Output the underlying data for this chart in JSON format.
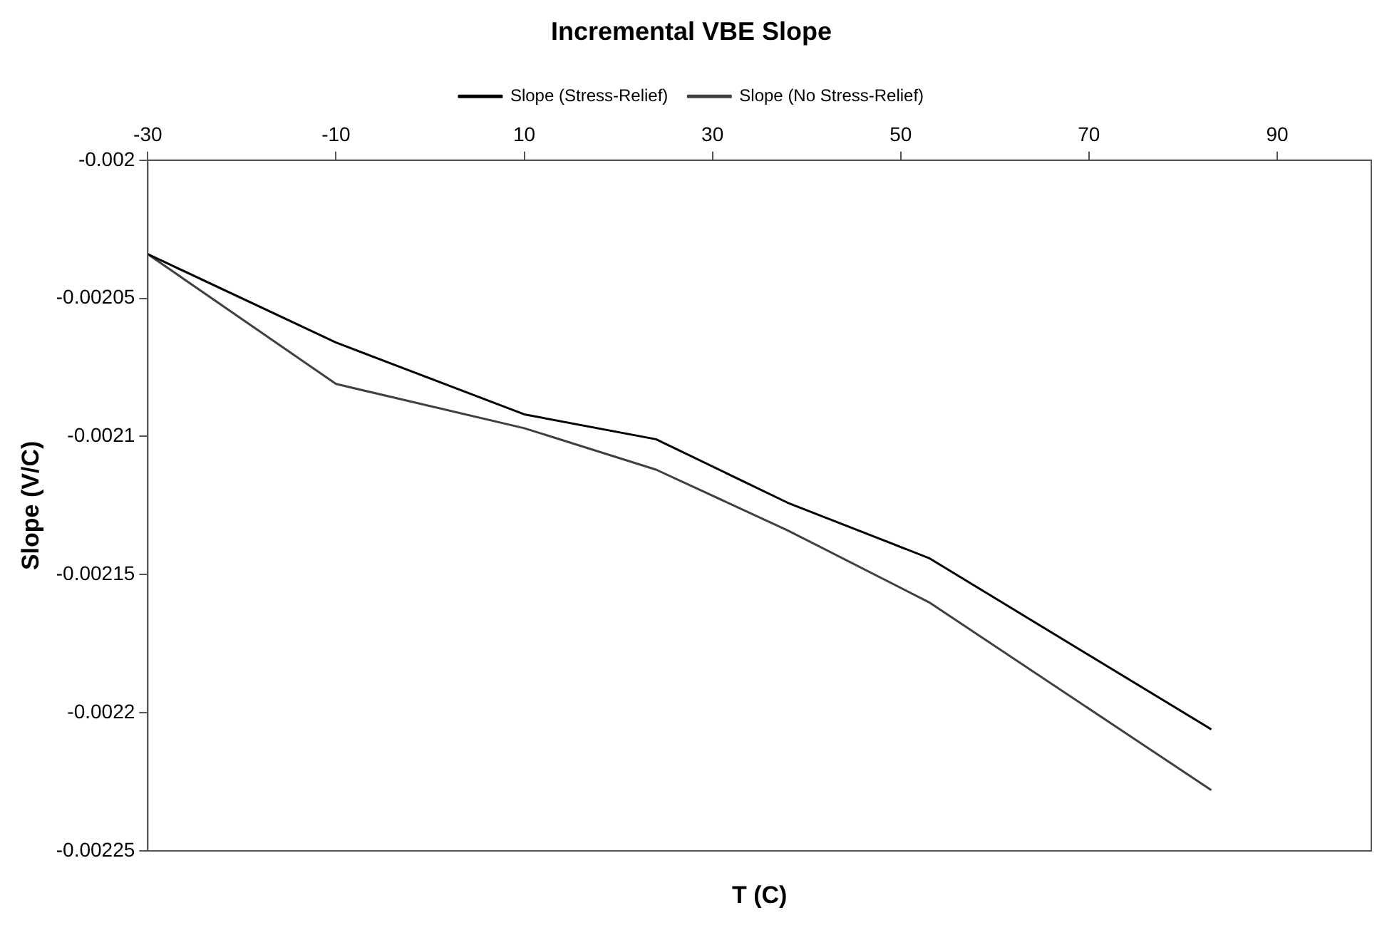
{
  "chart_data": {
    "type": "line",
    "title": "Incremental VBE Slope",
    "xlabel": "T (C)",
    "ylabel": "Slope (V/C)",
    "x": [
      -30,
      -10,
      10,
      24,
      38,
      53,
      83
    ],
    "series": [
      {
        "name": "Slope (Stress-Relief)",
        "color": "#000000",
        "values": [
          -0.002034,
          -0.002066,
          -0.002092,
          -0.002101,
          -0.002124,
          -0.002144,
          -0.002206
        ]
      },
      {
        "name": "Slope (No Stress-Relief)",
        "color": "#404040",
        "values": [
          -0.002034,
          -0.002081,
          -0.002097,
          -0.002112,
          -0.002134,
          -0.00216,
          -0.002228
        ]
      }
    ],
    "xlim": [
      -30,
      100
    ],
    "xticks": [
      -30,
      -10,
      10,
      30,
      50,
      70,
      90
    ],
    "ylim": [
      -0.00225,
      -0.002
    ],
    "yticks": [
      -0.00225,
      -0.0022,
      -0.00215,
      -0.0021,
      -0.00205,
      -0.002
    ],
    "grid": false,
    "legend": "top",
    "marker": "none",
    "line_style": "solid"
  }
}
